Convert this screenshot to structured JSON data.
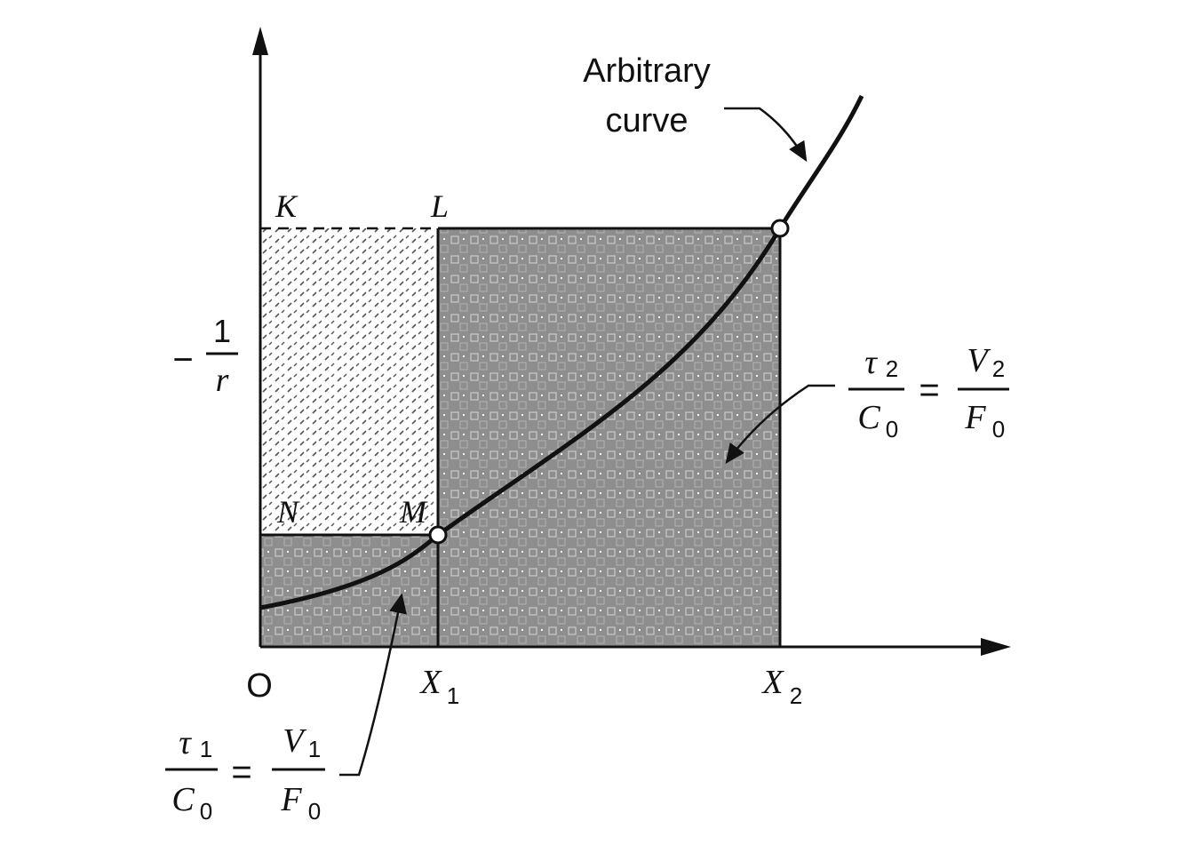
{
  "diagram": {
    "annotation": {
      "line1": "Arbitrary",
      "line2": "curve"
    },
    "points": {
      "K": "K",
      "L": "L",
      "N": "N",
      "M": "M"
    },
    "axis": {
      "origin": "O",
      "y_label": {
        "sign": "−",
        "numerator": "1",
        "denominator": "r"
      },
      "x_ticks": [
        {
          "main": "X",
          "sub": "1"
        },
        {
          "main": "X",
          "sub": "2"
        }
      ]
    },
    "equations": {
      "area2": {
        "tau": "τ",
        "tau_sub": "2",
        "c": "C",
        "c_sub": "0",
        "eq": "=",
        "v": "V",
        "v_sub": "2",
        "f": "F",
        "f_sub": "0"
      },
      "area1": {
        "tau": "τ",
        "tau_sub": "1",
        "c": "C",
        "c_sub": "0",
        "eq": "=",
        "v": "V",
        "v_sub": "1",
        "f": "F",
        "f_sub": "0"
      }
    },
    "colors": {
      "shaded": "#8e8e8e",
      "dotted": "#555555",
      "line": "#111111"
    }
  }
}
